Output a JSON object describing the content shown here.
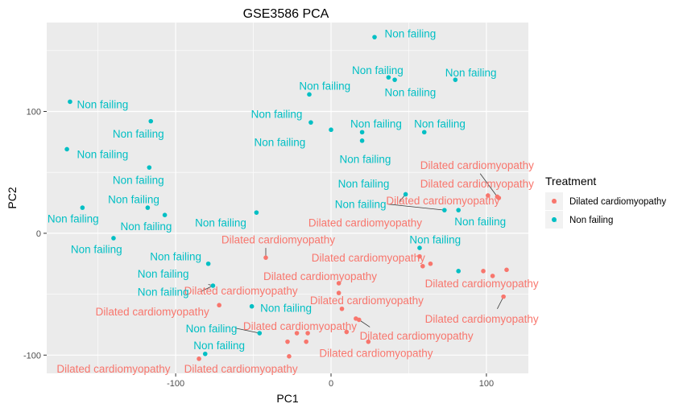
{
  "chart_data": {
    "type": "scatter",
    "title": "GSE3586 PCA",
    "xlabel": "PC1",
    "ylabel": "PC2",
    "xlim": [
      -183,
      127
    ],
    "ylim": [
      -115,
      173
    ],
    "x_ticks": [
      -100,
      0,
      100
    ],
    "y_ticks": [
      -100,
      0,
      100
    ],
    "grid": true,
    "legend": {
      "title": "Treatment",
      "position": "right"
    },
    "series": [
      {
        "name": "Dilated cardiomyopathy",
        "color": "#F8766D",
        "points": [
          {
            "x": 101,
            "y": 31
          },
          {
            "x": 107,
            "y": 30
          },
          {
            "x": 108,
            "y": 29
          },
          {
            "x": -42,
            "y": -20
          },
          {
            "x": 57,
            "y": -19
          },
          {
            "x": 59,
            "y": -27
          },
          {
            "x": 64,
            "y": -25
          },
          {
            "x": 98,
            "y": -31
          },
          {
            "x": 113,
            "y": -30
          },
          {
            "x": 104,
            "y": -35
          },
          {
            "x": 111,
            "y": -52
          },
          {
            "x": 5,
            "y": -41
          },
          {
            "x": 5,
            "y": -49
          },
          {
            "x": 7,
            "y": -62
          },
          {
            "x": -72,
            "y": -59
          },
          {
            "x": 16,
            "y": -70
          },
          {
            "x": 18,
            "y": -71
          },
          {
            "x": 10,
            "y": -81
          },
          {
            "x": -22,
            "y": -82
          },
          {
            "x": -15,
            "y": -82
          },
          {
            "x": -28,
            "y": -89
          },
          {
            "x": -16,
            "y": -89
          },
          {
            "x": 24,
            "y": -89
          },
          {
            "x": -27,
            "y": -101
          },
          {
            "x": -85,
            "y": -103
          }
        ]
      },
      {
        "name": "Non failing",
        "color": "#00BFC4",
        "points": [
          {
            "x": 28,
            "y": 161
          },
          {
            "x": 37,
            "y": 128
          },
          {
            "x": 41,
            "y": 126
          },
          {
            "x": 80,
            "y": 126
          },
          {
            "x": -14,
            "y": 114
          },
          {
            "x": -168,
            "y": 108
          },
          {
            "x": -13,
            "y": 91
          },
          {
            "x": -116,
            "y": 92
          },
          {
            "x": 0,
            "y": 85
          },
          {
            "x": 20,
            "y": 83
          },
          {
            "x": 60,
            "y": 83
          },
          {
            "x": 20,
            "y": 76
          },
          {
            "x": -170,
            "y": 69
          },
          {
            "x": -117,
            "y": 54
          },
          {
            "x": 48,
            "y": 32
          },
          {
            "x": 73,
            "y": 19
          },
          {
            "x": 82,
            "y": 19
          },
          {
            "x": -160,
            "y": 21
          },
          {
            "x": -118,
            "y": 21
          },
          {
            "x": -107,
            "y": 15
          },
          {
            "x": -48,
            "y": 17
          },
          {
            "x": -140,
            "y": -4
          },
          {
            "x": 57,
            "y": -12
          },
          {
            "x": -79,
            "y": -25
          },
          {
            "x": 82,
            "y": -31
          },
          {
            "x": -76,
            "y": -43
          },
          {
            "x": -51,
            "y": -60
          },
          {
            "x": -46,
            "y": -82
          },
          {
            "x": -81,
            "y": -99
          }
        ]
      }
    ],
    "labels": [
      {
        "text": "Dilated cardiomyopathy",
        "series": 0,
        "x": 94,
        "y": 56
      },
      {
        "text": "Dilated cardiomyopathy",
        "series": 0,
        "x": 94,
        "y": 41
      },
      {
        "text": "Dilated cardiomyopathy",
        "series": 0,
        "x": 72,
        "y": 27
      },
      {
        "text": "Dilated cardiomyopathy",
        "series": 0,
        "x": 22,
        "y": 9
      },
      {
        "text": "Dilated cardiomyopathy",
        "series": 0,
        "x": -34,
        "y": -5
      },
      {
        "text": "Dilated cardiomyopathy",
        "series": 0,
        "x": 24,
        "y": -20
      },
      {
        "text": "Dilated cardiomyopathy",
        "series": 0,
        "x": -7,
        "y": -35
      },
      {
        "text": "Dilated cardiomyopathy",
        "series": 0,
        "x": 97,
        "y": -41
      },
      {
        "text": "Dilated cardiomyopathy",
        "series": 0,
        "x": -58,
        "y": -47
      },
      {
        "text": "Dilated cardiomyopathy",
        "series": 0,
        "x": 23,
        "y": -55
      },
      {
        "text": "Dilated cardiomyopathy",
        "series": 0,
        "x": -115,
        "y": -64
      },
      {
        "text": "Dilated cardiomyopathy",
        "series": 0,
        "x": 97,
        "y": -70
      },
      {
        "text": "Dilated cardiomyopathy",
        "series": 0,
        "x": -20,
        "y": -76
      },
      {
        "text": "Dilated cardiomyopathy",
        "series": 0,
        "x": 55,
        "y": -84
      },
      {
        "text": "Dilated cardiomyopathy",
        "series": 0,
        "x": 29,
        "y": -98
      },
      {
        "text": "Dilated cardiomyopathy",
        "series": 0,
        "x": -140,
        "y": -111
      },
      {
        "text": "Dilated cardiomyopathy",
        "series": 0,
        "x": -58,
        "y": -111
      },
      {
        "text": "Non failing",
        "series": 1,
        "x": 51,
        "y": 164
      },
      {
        "text": "Non failing",
        "series": 1,
        "x": 30,
        "y": 134
      },
      {
        "text": "Non failing",
        "series": 1,
        "x": 90,
        "y": 132
      },
      {
        "text": "Non failing",
        "series": 1,
        "x": -4,
        "y": 121
      },
      {
        "text": "Non failing",
        "series": 1,
        "x": 51,
        "y": 116
      },
      {
        "text": "Non failing",
        "series": 1,
        "x": -147,
        "y": 106
      },
      {
        "text": "Non failing",
        "series": 1,
        "x": -35,
        "y": 98
      },
      {
        "text": "Non failing",
        "series": 1,
        "x": -124,
        "y": 82
      },
      {
        "text": "Non failing",
        "series": 1,
        "x": 29,
        "y": 90
      },
      {
        "text": "Non failing",
        "series": 1,
        "x": 70,
        "y": 90
      },
      {
        "text": "Non failing",
        "series": 1,
        "x": -33,
        "y": 75
      },
      {
        "text": "Non failing",
        "series": 1,
        "x": -147,
        "y": 65
      },
      {
        "text": "Non failing",
        "series": 1,
        "x": 22,
        "y": 61
      },
      {
        "text": "Non failing",
        "series": 1,
        "x": -124,
        "y": 44
      },
      {
        "text": "Non failing",
        "series": 1,
        "x": 21,
        "y": 41
      },
      {
        "text": "Non failing",
        "series": 1,
        "x": -127,
        "y": 28
      },
      {
        "text": "Non failing",
        "series": 1,
        "x": 19,
        "y": 24
      },
      {
        "text": "Non failing",
        "series": 1,
        "x": -166,
        "y": 12
      },
      {
        "text": "Non failing",
        "series": 1,
        "x": -71,
        "y": 9
      },
      {
        "text": "Non failing",
        "series": 1,
        "x": 96,
        "y": 10
      },
      {
        "text": "Non failing",
        "series": 1,
        "x": -119,
        "y": 6
      },
      {
        "text": "Non failing",
        "series": 1,
        "x": -151,
        "y": -13
      },
      {
        "text": "Non failing",
        "series": 1,
        "x": 67,
        "y": -5
      },
      {
        "text": "Non failing",
        "series": 1,
        "x": -100,
        "y": -19
      },
      {
        "text": "Non failing",
        "series": 1,
        "x": -108,
        "y": -33
      },
      {
        "text": "Non failing",
        "series": 1,
        "x": -108,
        "y": -48
      },
      {
        "text": "Non failing",
        "series": 1,
        "x": -29,
        "y": -61
      },
      {
        "text": "Non failing",
        "series": 1,
        "x": -77,
        "y": -78
      },
      {
        "text": "Non failing",
        "series": 1,
        "x": -72,
        "y": -92
      }
    ],
    "connectors": [
      {
        "from": [
          96,
          49
        ],
        "to": [
          107,
          30
        ]
      },
      {
        "from": [
          44,
          26
        ],
        "to": [
          48,
          32
        ]
      },
      {
        "from": [
          36,
          24
        ],
        "to": [
          73,
          19
        ]
      },
      {
        "from": [
          -42,
          -12
        ],
        "to": [
          -42,
          -20
        ]
      },
      {
        "from": [
          -84,
          -48
        ],
        "to": [
          -76,
          -43
        ]
      },
      {
        "from": [
          -61,
          -78
        ],
        "to": [
          -46,
          -82
        ]
      },
      {
        "from": [
          107,
          -62
        ],
        "to": [
          111,
          -52
        ]
      },
      {
        "from": [
          4,
          -48
        ],
        "to": [
          5,
          -49
        ]
      },
      {
        "from": [
          25,
          -77
        ],
        "to": [
          18,
          -71
        ]
      },
      {
        "from": [
          -79,
          -42
        ],
        "to": [
          -76,
          -43
        ]
      }
    ]
  }
}
